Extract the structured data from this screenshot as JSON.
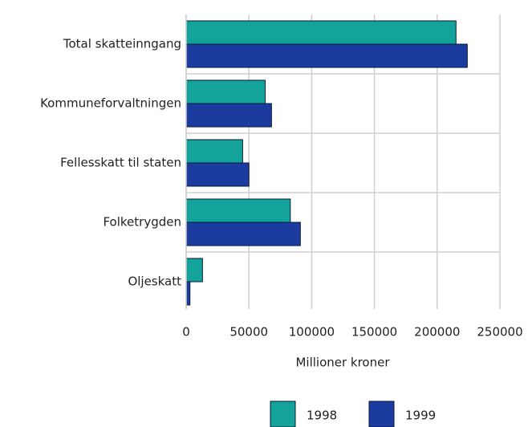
{
  "chart_data": {
    "type": "hbar",
    "categories": [
      "Total skatteinngang",
      "Kommuneforvaltningen",
      "Fellesskatt til staten",
      "Folketrygden",
      "Oljeskatt"
    ],
    "series": [
      {
        "name": "1998",
        "color": "#13a39b",
        "values": [
          215000,
          63000,
          45000,
          83000,
          13000
        ]
      },
      {
        "name": "1999",
        "color": "#1b3c9e",
        "values": [
          224000,
          68000,
          50000,
          91000,
          3000
        ]
      }
    ],
    "xlabel": "Millioner kroner",
    "xlim": [
      0,
      250000
    ],
    "xticks": [
      0,
      50000,
      100000,
      150000,
      200000,
      250000
    ],
    "grid": true,
    "legend": "bottom"
  }
}
